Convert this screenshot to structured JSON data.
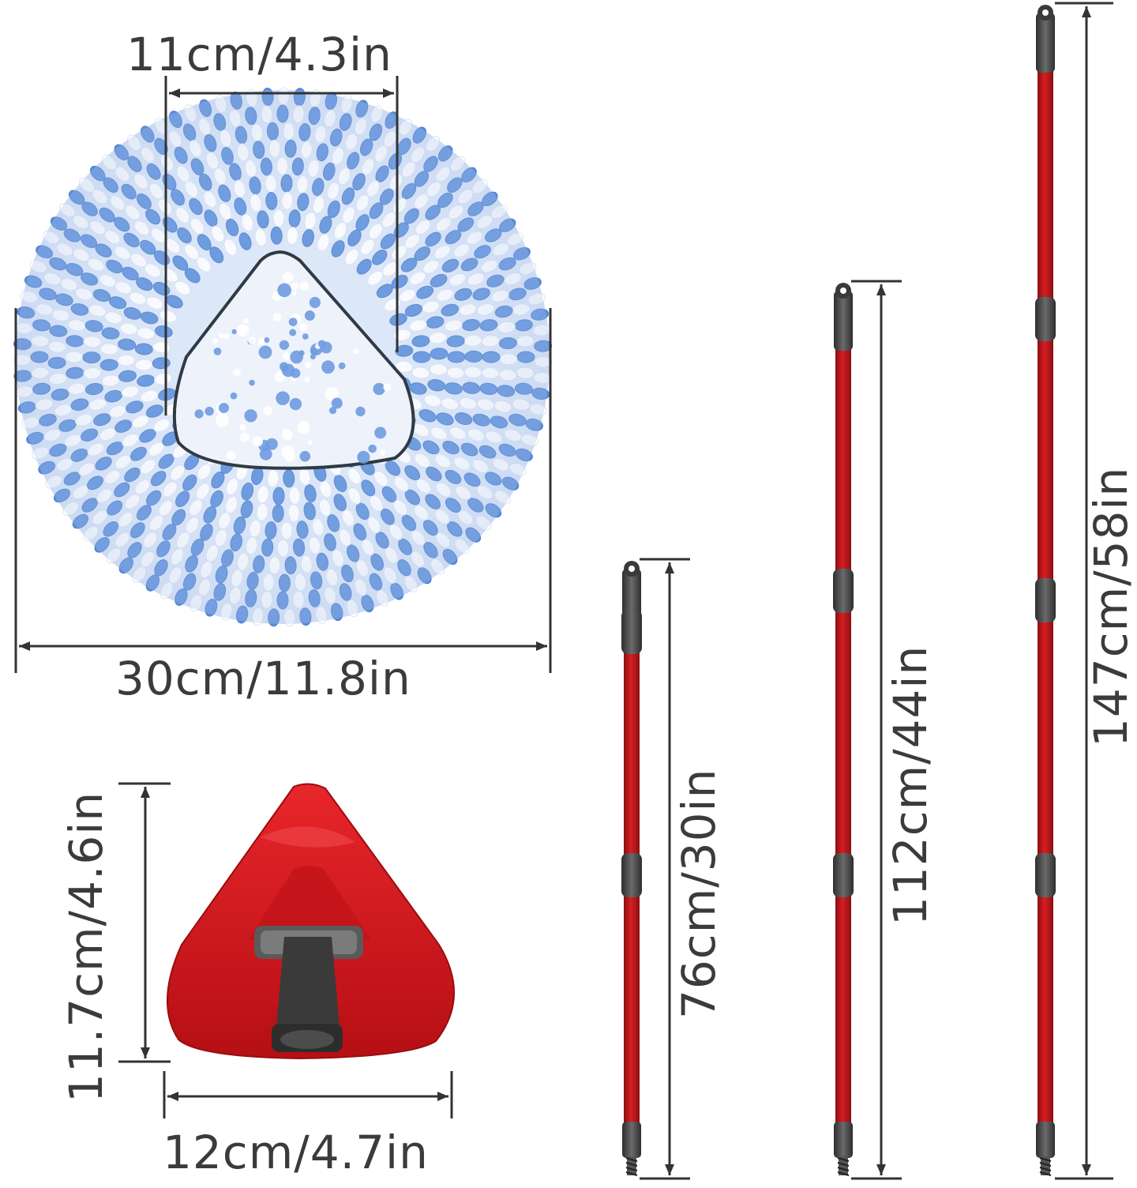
{
  "palette": {
    "mop_blue": "#5b8fdc",
    "mop_white": "#ffffff",
    "base_red": "#d4161b",
    "pole_red": "#c0171b",
    "grip_gray": "#4d4d4d",
    "line": "#333333",
    "text": "#3b3b3b"
  },
  "mop_head": {
    "icon": "microfiber-mop-head-icon",
    "inner_width_label": "11cm/4.3in",
    "width_label": "30cm/11.8in"
  },
  "mop_base": {
    "icon": "triangle-mop-base-icon",
    "height_label": "11.7cm/4.6in",
    "width_label": "12cm/4.7in"
  },
  "poles": [
    {
      "icon": "telescopic-pole-icon",
      "length_label": "76cm/30in"
    },
    {
      "icon": "telescopic-pole-icon",
      "length_label": "112cm/44in"
    },
    {
      "icon": "telescopic-pole-icon",
      "length_label": "147cm/58in"
    }
  ]
}
